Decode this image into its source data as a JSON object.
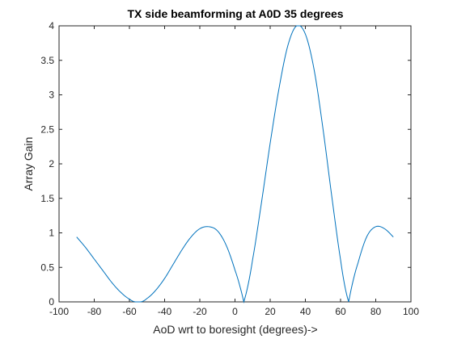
{
  "chart_data": {
    "type": "line",
    "title": "TX side beamforming at A0D 35 degrees",
    "xlabel": "AoD wrt to boresight (degrees)->",
    "ylabel": "Array Gain",
    "xlim": [
      -100,
      100
    ],
    "ylim": [
      0,
      4
    ],
    "xticks": [
      -100,
      -80,
      -60,
      -40,
      -20,
      0,
      20,
      40,
      60,
      80,
      100
    ],
    "yticks": [
      0,
      0.5,
      1,
      1.5,
      2,
      2.5,
      3,
      3.5,
      4
    ],
    "xtick_labels": [
      "-100",
      "-80",
      "-60",
      "-40",
      "-20",
      "0",
      "20",
      "40",
      "60",
      "80",
      "100"
    ],
    "ytick_labels": [
      "0",
      "0.5",
      "1",
      "1.5",
      "2",
      "2.5",
      "3",
      "3.5",
      "4"
    ],
    "grid": false,
    "box": true,
    "series": [
      {
        "color": "#0072bd",
        "x_range": [
          -90,
          90
        ],
        "points": [
          [
            -90,
            0.94
          ],
          [
            -85,
            0.79
          ],
          [
            -80,
            0.62
          ],
          [
            -75,
            0.45
          ],
          [
            -70,
            0.28
          ],
          [
            -65,
            0.14
          ],
          [
            -60,
            0.04
          ],
          [
            -55,
            0.0
          ],
          [
            -50,
            0.05
          ],
          [
            -45,
            0.17
          ],
          [
            -40,
            0.34
          ],
          [
            -35,
            0.55
          ],
          [
            -30,
            0.76
          ],
          [
            -25,
            0.94
          ],
          [
            -20,
            1.06
          ],
          [
            -15,
            1.09
          ],
          [
            -10,
            1.03
          ],
          [
            -5,
            0.82
          ],
          [
            0,
            0.46
          ],
          [
            5,
            0.0
          ],
          [
            10,
            0.61
          ],
          [
            15,
            1.43
          ],
          [
            20,
            2.3
          ],
          [
            25,
            3.09
          ],
          [
            30,
            3.71
          ],
          [
            35,
            4.0
          ],
          [
            40,
            3.88
          ],
          [
            45,
            3.36
          ],
          [
            50,
            2.51
          ],
          [
            55,
            1.53
          ],
          [
            60,
            0.61
          ],
          [
            64.6,
            0.0
          ],
          [
            70,
            0.57
          ],
          [
            75,
            0.95
          ],
          [
            80,
            1.09
          ],
          [
            85,
            1.06
          ],
          [
            90,
            0.94
          ]
        ]
      }
    ]
  }
}
